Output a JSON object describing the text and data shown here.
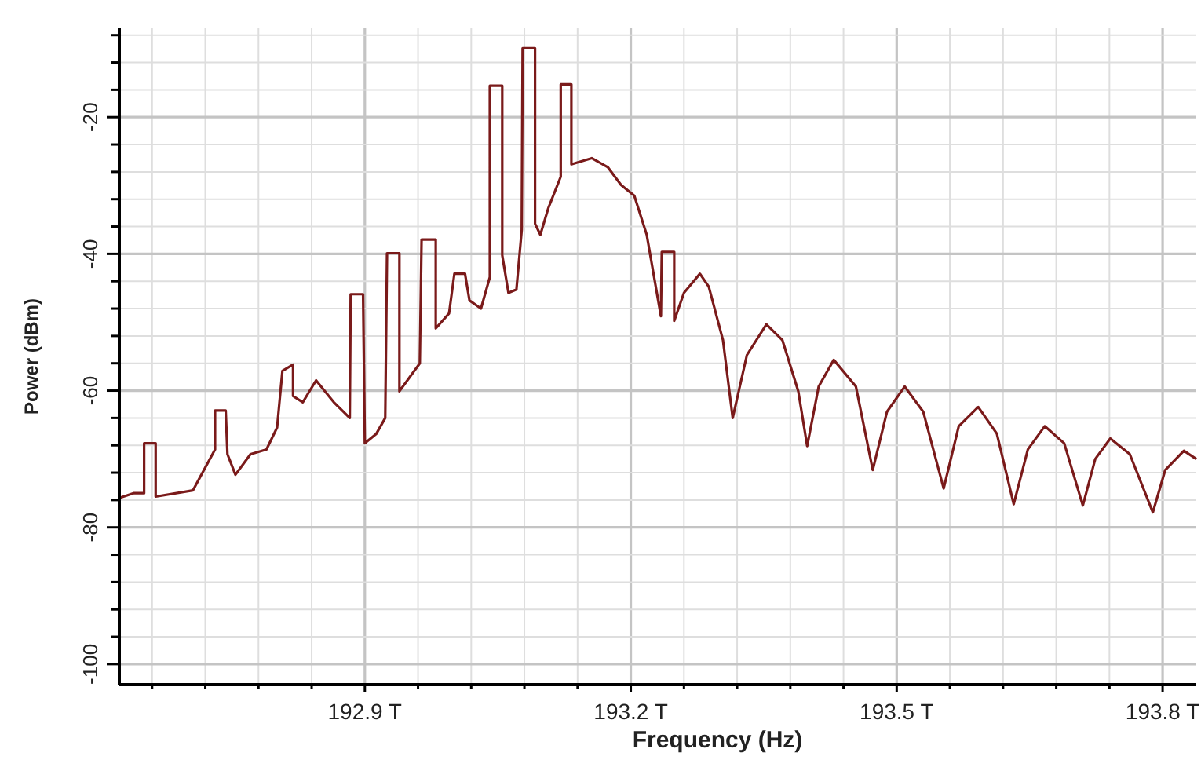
{
  "chart_data": {
    "type": "line",
    "xlabel": "Frequency (Hz)",
    "ylabel": "Power (dBm)",
    "xlim": [
      192.623,
      193.838
    ],
    "ylim": [
      -103,
      -7
    ],
    "xticks": [
      {
        "value": 192.66,
        "label": null
      },
      {
        "value": 192.72,
        "label": null
      },
      {
        "value": 192.78,
        "label": null
      },
      {
        "value": 192.84,
        "label": null
      },
      {
        "value": 192.9,
        "label": "192.9 T"
      },
      {
        "value": 192.96,
        "label": null
      },
      {
        "value": 193.02,
        "label": null
      },
      {
        "value": 193.08,
        "label": null
      },
      {
        "value": 193.14,
        "label": null
      },
      {
        "value": 193.2,
        "label": "193.2 T"
      },
      {
        "value": 193.26,
        "label": null
      },
      {
        "value": 193.32,
        "label": null
      },
      {
        "value": 193.38,
        "label": null
      },
      {
        "value": 193.44,
        "label": null
      },
      {
        "value": 193.5,
        "label": "193.5 T"
      },
      {
        "value": 193.56,
        "label": null
      },
      {
        "value": 193.62,
        "label": null
      },
      {
        "value": 193.68,
        "label": null
      },
      {
        "value": 193.74,
        "label": null
      },
      {
        "value": 193.8,
        "label": "193.8 T"
      }
    ],
    "yticks": [
      -100,
      {
        "value": -96,
        "label": null
      },
      {
        "value": -92,
        "label": null
      },
      {
        "value": -88,
        "label": null
      },
      {
        "value": -84,
        "label": null
      },
      -80,
      {
        "value": -76,
        "label": null
      },
      {
        "value": -72,
        "label": null
      },
      {
        "value": -68,
        "label": null
      },
      {
        "value": -64,
        "label": null
      },
      -60,
      {
        "value": -56,
        "label": null
      },
      {
        "value": -52,
        "label": null
      },
      {
        "value": -48,
        "label": null
      },
      {
        "value": -44,
        "label": null
      },
      -40,
      {
        "value": -36,
        "label": null
      },
      {
        "value": -32,
        "label": null
      },
      {
        "value": -28,
        "label": null
      },
      {
        "value": -24,
        "label": null
      },
      -20,
      {
        "value": -16,
        "label": null
      },
      {
        "value": -12,
        "label": null
      },
      {
        "value": -8,
        "label": null
      }
    ],
    "grid": true,
    "marker": "none",
    "line_style": "solid",
    "series": [
      {
        "color": "#7a1a1a",
        "x": [
          192.623,
          192.639,
          192.651,
          192.651,
          192.664,
          192.664,
          192.706,
          192.731,
          192.731,
          192.743,
          192.745,
          192.754,
          192.771,
          192.789,
          192.801,
          192.807,
          192.819,
          192.819,
          192.83,
          192.845,
          192.865,
          192.883,
          192.884,
          192.898,
          192.9,
          192.913,
          192.923,
          192.925,
          192.939,
          192.939,
          192.962,
          192.964,
          192.98,
          192.98,
          192.995,
          193.001,
          193.013,
          193.018,
          193.031,
          193.041,
          193.041,
          193.055,
          193.055,
          193.062,
          193.071,
          193.077,
          193.078,
          193.092,
          193.092,
          193.098,
          193.107,
          193.121,
          193.121,
          193.133,
          193.133,
          193.156,
          193.174,
          193.189,
          193.204,
          193.218,
          193.234,
          193.235,
          193.249,
          193.249,
          193.26,
          193.278,
          193.288,
          193.304,
          193.315,
          193.331,
          193.353,
          193.371,
          193.389,
          193.399,
          193.412,
          193.429,
          193.454,
          193.473,
          193.489,
          193.509,
          193.53,
          193.553,
          193.57,
          193.592,
          193.613,
          193.632,
          193.648,
          193.667,
          193.689,
          193.71,
          193.724,
          193.741,
          193.763,
          193.789,
          193.803,
          193.824,
          193.838
        ],
        "values": [
          -75.7,
          -75.0,
          -75.0,
          -67.7,
          -67.7,
          -75.5,
          -74.6,
          -68.6,
          -62.9,
          -62.9,
          -69.3,
          -72.3,
          -69.3,
          -68.6,
          -65.4,
          -57.1,
          -56.2,
          -60.8,
          -61.7,
          -58.5,
          -61.7,
          -64.0,
          -45.9,
          -45.9,
          -67.7,
          -66.3,
          -64.0,
          -39.9,
          -39.9,
          -60.1,
          -56.0,
          -37.9,
          -37.9,
          -50.9,
          -48.7,
          -42.9,
          -42.9,
          -46.8,
          -48.0,
          -43.4,
          -15.4,
          -15.4,
          -40.2,
          -45.7,
          -45.2,
          -36.5,
          -9.9,
          -9.9,
          -35.6,
          -37.2,
          -33.3,
          -28.7,
          -15.2,
          -15.2,
          -26.9,
          -26.0,
          -27.3,
          -29.9,
          -31.5,
          -37.2,
          -49.1,
          -39.7,
          -39.7,
          -49.8,
          -45.7,
          -42.9,
          -44.8,
          -52.6,
          -64.0,
          -54.8,
          -50.3,
          -52.6,
          -60.1,
          -68.1,
          -59.4,
          -55.5,
          -59.4,
          -71.6,
          -63.1,
          -59.4,
          -63.1,
          -74.3,
          -65.2,
          -62.4,
          -66.3,
          -76.6,
          -68.6,
          -65.2,
          -67.7,
          -76.8,
          -70.0,
          -67.0,
          -69.3,
          -77.8,
          -71.6,
          -68.8,
          -70.0
        ]
      }
    ]
  }
}
